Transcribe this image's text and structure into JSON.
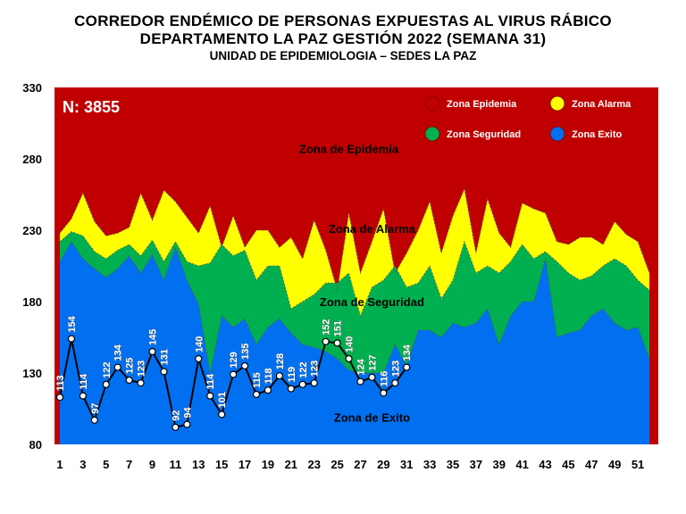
{
  "header": {
    "title": "CORREDOR ENDÉMICO DE PERSONAS EXPUESTAS AL VIRUS RÁBICO",
    "subtitle": "DEPARTAMENTO  LA PAZ GESTIÓN 2022 (SEMANA 31)",
    "unit": "UNIDAD DE EPIDEMIOLOGIA – SEDES LA PAZ"
  },
  "chart_data": {
    "type": "area",
    "title": "CORREDOR ENDÉMICO DE PERSONAS EXPUESTAS AL VIRUS RÁBICO",
    "total_label": "N: 3855",
    "xlabel": "",
    "ylabel": "",
    "xlim": [
      1,
      52
    ],
    "ylim": [
      80,
      330
    ],
    "yticks": [
      80,
      130,
      180,
      230,
      280,
      330
    ],
    "xticks": [
      1,
      3,
      5,
      7,
      9,
      11,
      13,
      15,
      17,
      19,
      21,
      23,
      25,
      27,
      29,
      31,
      33,
      35,
      37,
      39,
      41,
      43,
      45,
      47,
      49,
      51
    ],
    "grid": false,
    "legend_position": "top-right",
    "zones": [
      {
        "name": "Zona Epidemia",
        "color": "#c00000",
        "label": "Zona de Epidemia"
      },
      {
        "name": "Zona Alarma",
        "color": "#ffff00",
        "label": "Zona de Alarma"
      },
      {
        "name": "Zona Seguridad",
        "color": "#00b050",
        "label": "Zona de Seguridad"
      },
      {
        "name": "Zona Exito",
        "color": "#0070f0",
        "label": "Zona de Exito"
      }
    ],
    "x": [
      1,
      2,
      3,
      4,
      5,
      6,
      7,
      8,
      9,
      10,
      11,
      12,
      13,
      14,
      15,
      16,
      17,
      18,
      19,
      20,
      21,
      22,
      23,
      24,
      25,
      26,
      27,
      28,
      29,
      30,
      31,
      32,
      33,
      34,
      35,
      36,
      37,
      38,
      39,
      40,
      41,
      42,
      43,
      44,
      45,
      46,
      47,
      48,
      49,
      50,
      51,
      52
    ],
    "exito_upper": [
      208,
      222,
      210,
      203,
      197,
      203,
      212,
      200,
      213,
      195,
      218,
      195,
      178,
      130,
      170,
      162,
      168,
      150,
      162,
      168,
      158,
      150,
      148,
      145,
      140,
      132,
      130,
      130,
      130,
      150,
      135,
      160,
      160,
      155,
      165,
      162,
      165,
      175,
      150,
      170,
      180,
      180,
      210,
      155,
      158,
      160,
      170,
      175,
      165,
      160,
      162,
      140
    ],
    "seguridad_upper": [
      222,
      229,
      226,
      215,
      210,
      216,
      220,
      212,
      223,
      208,
      222,
      208,
      205,
      207,
      220,
      212,
      216,
      195,
      205,
      205,
      175,
      180,
      185,
      193,
      193,
      200,
      170,
      190,
      195,
      205,
      190,
      193,
      205,
      182,
      195,
      222,
      200,
      205,
      200,
      208,
      220,
      210,
      215,
      208,
      200,
      195,
      198,
      205,
      210,
      205,
      195,
      188
    ],
    "alarma_upper": [
      228,
      238,
      256,
      236,
      226,
      228,
      232,
      256,
      237,
      258,
      250,
      239,
      228,
      247,
      218,
      240,
      218,
      230,
      230,
      218,
      225,
      210,
      237,
      216,
      188,
      242,
      200,
      222,
      245,
      200,
      214,
      230,
      250,
      214,
      240,
      259,
      214,
      252,
      228,
      218,
      249,
      245,
      242,
      222,
      220,
      225,
      225,
      220,
      236,
      227,
      222,
      200
    ],
    "observed": [
      113,
      154,
      114,
      97,
      122,
      134,
      125,
      123,
      145,
      131,
      92,
      94,
      140,
      114,
      101,
      129,
      135,
      115,
      118,
      128,
      119,
      122,
      123,
      152,
      151,
      140,
      124,
      127,
      116,
      123,
      134
    ]
  }
}
